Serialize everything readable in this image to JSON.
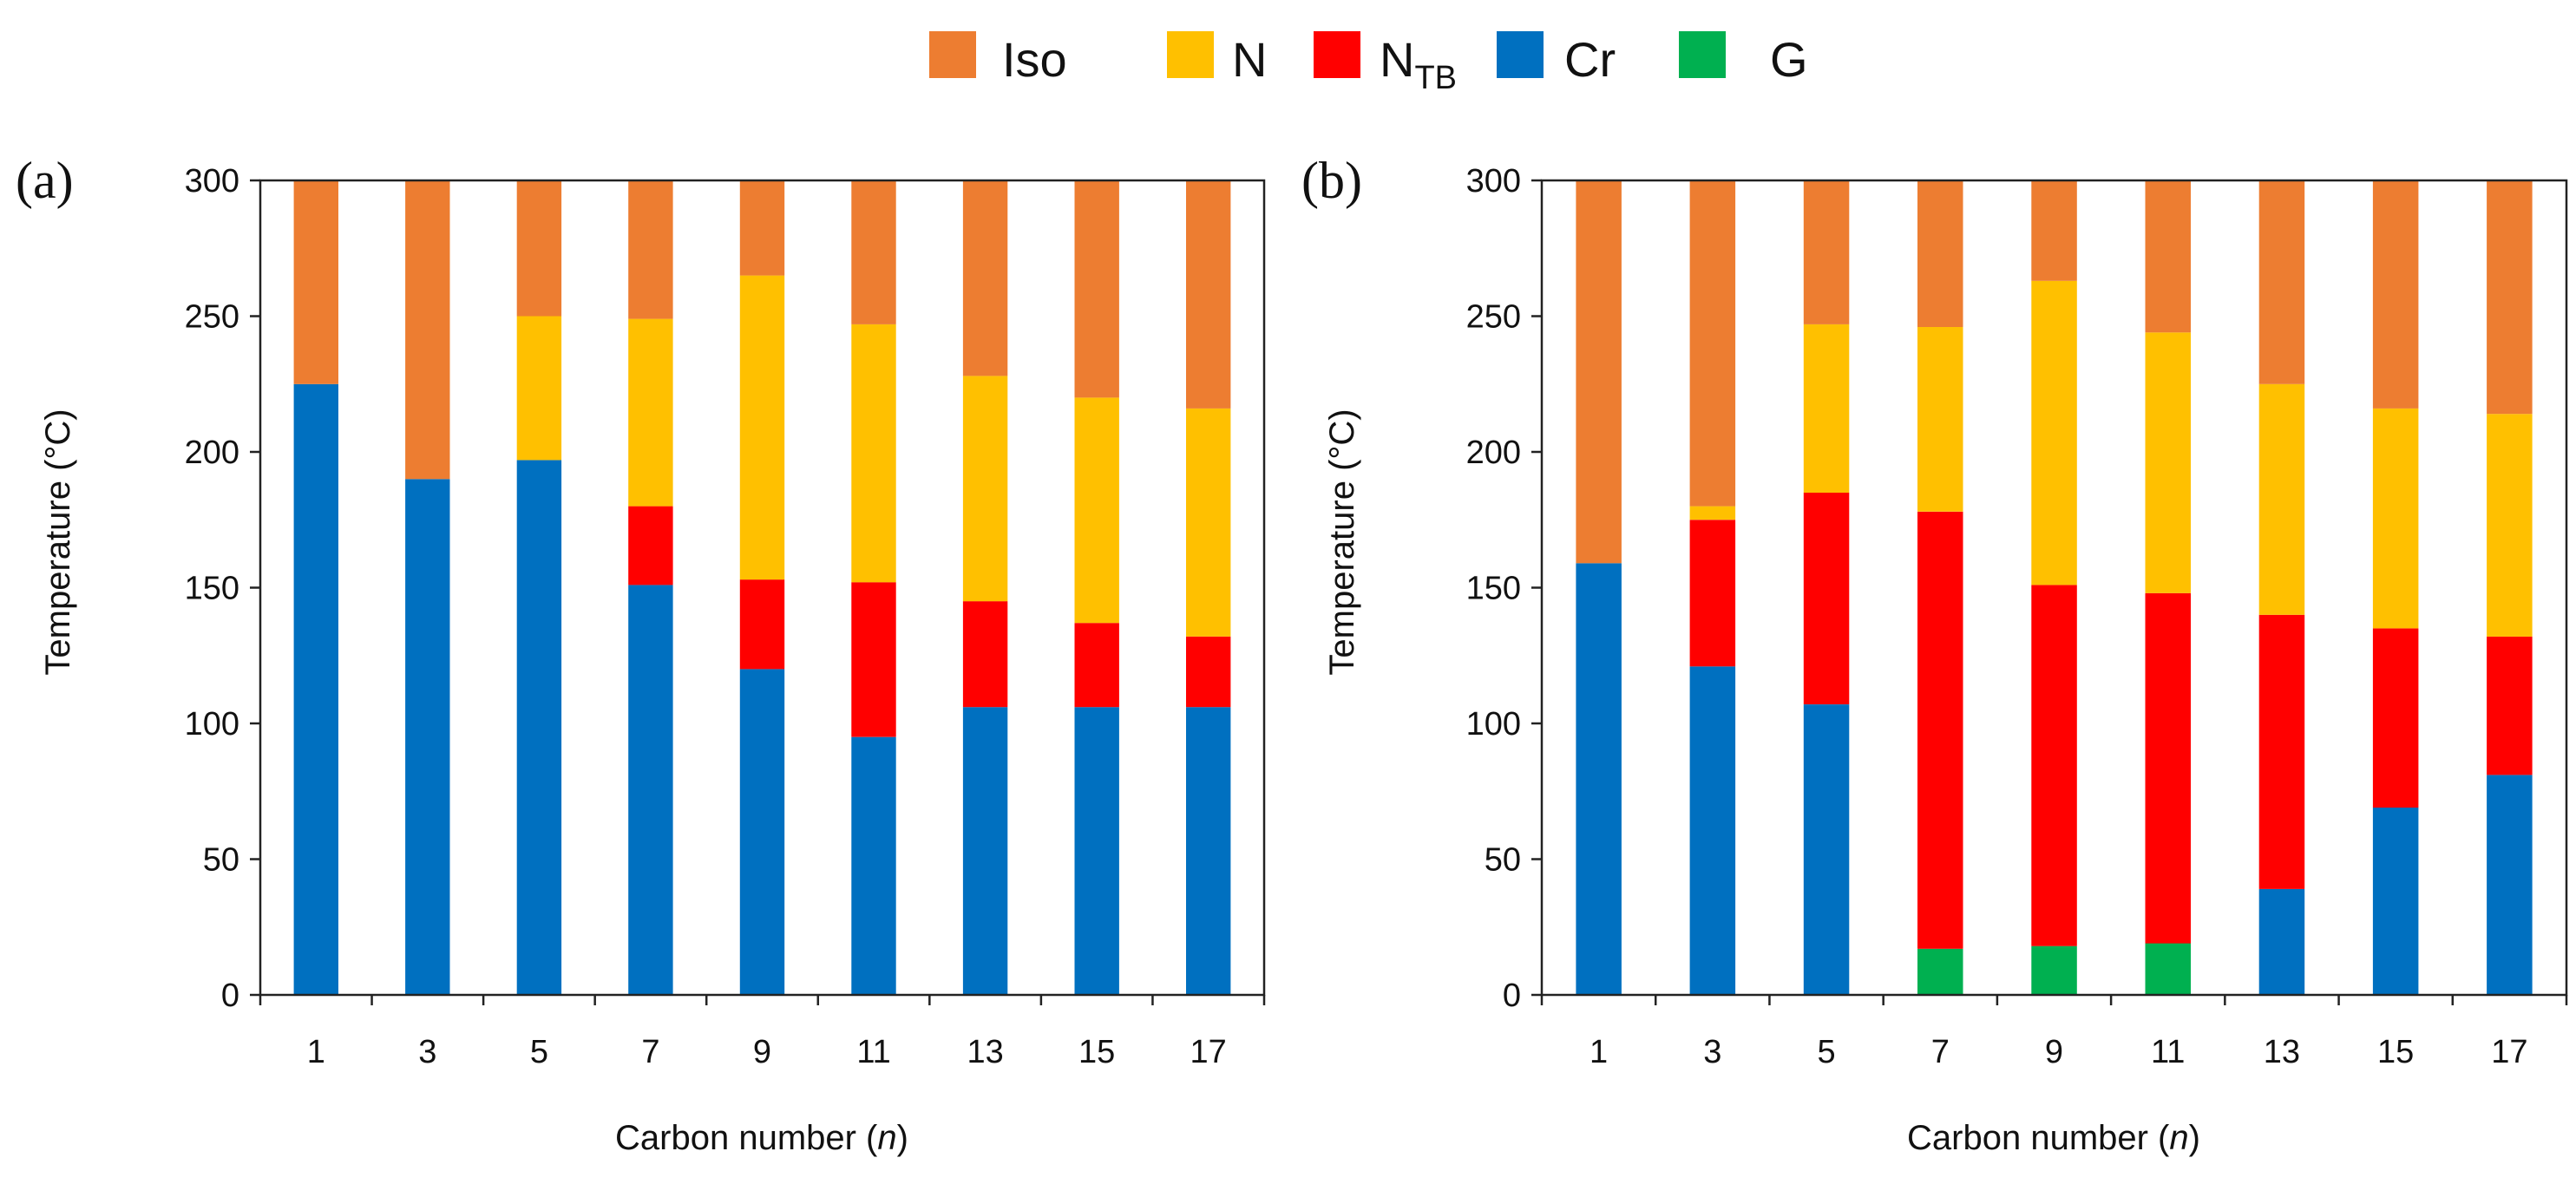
{
  "legend": {
    "items": [
      {
        "key": "Iso",
        "label": "Iso",
        "color": "#ED7D31"
      },
      {
        "key": "N",
        "label": "N",
        "color": "#FFC000"
      },
      {
        "key": "NTB",
        "label": "N",
        "sub": "TB",
        "color": "#FF0000"
      },
      {
        "key": "Cr",
        "label": "Cr",
        "color": "#0070C0"
      },
      {
        "key": "G",
        "label": "G",
        "color": "#00B050"
      }
    ]
  },
  "chart_data": [
    {
      "type": "bar",
      "stacked": true,
      "panel": "(a)",
      "xlabel": "Carbon number (",
      "xlabel_var": "n",
      "xlabel_end": ")",
      "ylabel": "Temperature (°C)",
      "ylim": [
        0,
        300
      ],
      "yticks": [
        0,
        50,
        100,
        150,
        200,
        250,
        300
      ],
      "categories": [
        "1",
        "3",
        "5",
        "7",
        "9",
        "11",
        "13",
        "15",
        "17"
      ],
      "transitions": {
        "Cr_top": [
          225,
          190,
          197,
          151,
          120,
          95,
          106,
          106,
          106
        ],
        "NTB_top": [
          225,
          190,
          197,
          180,
          153,
          152,
          145,
          137,
          132
        ],
        "N_top": [
          225,
          190,
          250,
          249,
          265,
          247,
          228,
          220,
          216
        ]
      }
    },
    {
      "type": "bar",
      "stacked": true,
      "panel": "(b)",
      "xlabel": "Carbon number (",
      "xlabel_var": "n",
      "xlabel_end": ")",
      "ylabel": "Temperature (°C)",
      "ylim": [
        0,
        300
      ],
      "yticks": [
        0,
        50,
        100,
        150,
        200,
        250,
        300
      ],
      "categories": [
        "1",
        "3",
        "5",
        "7",
        "9",
        "11",
        "13",
        "15",
        "17"
      ],
      "transitions": {
        "G_top": [
          0,
          0,
          0,
          17,
          18,
          19,
          0,
          0,
          0
        ],
        "Cr_top": [
          159,
          121,
          107,
          17,
          18,
          19,
          39,
          69,
          81
        ],
        "NTB_top": [
          159,
          175,
          185,
          178,
          151,
          148,
          140,
          135,
          132
        ],
        "N_top": [
          159,
          180,
          247,
          246,
          263,
          244,
          225,
          216,
          214
        ]
      }
    }
  ]
}
